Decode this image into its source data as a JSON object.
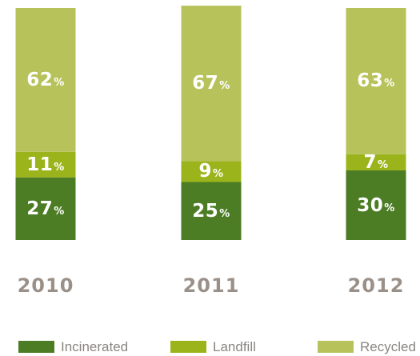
{
  "chart_data": {
    "type": "bar",
    "stacked": true,
    "categories": [
      "2010",
      "2011",
      "2012"
    ],
    "percent_symbol": "%",
    "series": [
      {
        "name": "Incinerated",
        "color": "#4c7d25",
        "values": [
          27,
          25,
          30
        ]
      },
      {
        "name": "Landfill",
        "color": "#9cb41c",
        "values": [
          11,
          9,
          7
        ]
      },
      {
        "name": "Recycled",
        "color": "#b7c25b",
        "values": [
          62,
          67,
          63
        ]
      }
    ],
    "ylim": [
      0,
      100
    ],
    "legend_position": "bottom"
  }
}
